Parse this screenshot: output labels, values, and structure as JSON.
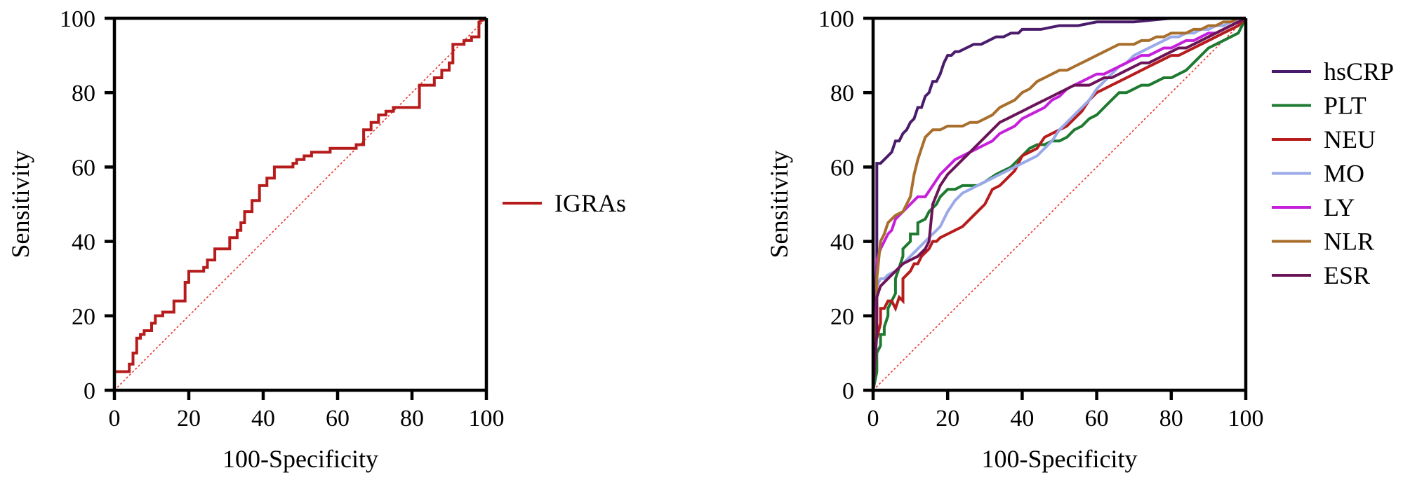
{
  "chart_data": [
    {
      "type": "line",
      "title": "",
      "xlabel": "100-Specificity",
      "ylabel": "Sensitivity",
      "xlim": [
        0,
        100
      ],
      "ylim": [
        0,
        100
      ],
      "xticks": [
        "0",
        "20",
        "40",
        "60",
        "80",
        "100"
      ],
      "yticks": [
        "0",
        "20",
        "40",
        "60",
        "80",
        "100"
      ],
      "grid": false,
      "legend_position": "right",
      "reference_line": {
        "x": [
          0,
          100
        ],
        "y": [
          0,
          100
        ],
        "color": "#e8352b",
        "style": "dotted"
      },
      "series": [
        {
          "name": "IGRAs",
          "color": "#b71c1c",
          "x": [
            0,
            0,
            4,
            4,
            5,
            5,
            6,
            6,
            7,
            7,
            8,
            8,
            10,
            10,
            11,
            11,
            13,
            13,
            16,
            16,
            19,
            19,
            20,
            20,
            22,
            22,
            24,
            24,
            25,
            25,
            27,
            27,
            28,
            28,
            31,
            31,
            33,
            33,
            34,
            34,
            35,
            35,
            37,
            37,
            39,
            39,
            41,
            41,
            43,
            43,
            47,
            47,
            48,
            48,
            49,
            49,
            51,
            51,
            53,
            53,
            55,
            55,
            58,
            58,
            62,
            62,
            65,
            65,
            67,
            67,
            69,
            69,
            71,
            71,
            73,
            73,
            75,
            75,
            78,
            78,
            82,
            82,
            84,
            84,
            86,
            86,
            88,
            88,
            90,
            90,
            91,
            91,
            94,
            94,
            96,
            96,
            98,
            98,
            100
          ],
          "y": [
            0,
            5,
            5,
            7,
            7,
            10,
            10,
            14,
            14,
            15,
            15,
            16,
            16,
            18,
            18,
            20,
            20,
            21,
            21,
            24,
            24,
            29,
            29,
            32,
            32,
            32,
            32,
            33,
            33,
            35,
            35,
            38,
            38,
            38,
            38,
            41,
            41,
            43,
            43,
            45,
            45,
            48,
            48,
            51,
            51,
            55,
            55,
            57,
            57,
            60,
            60,
            60,
            60,
            61,
            61,
            62,
            62,
            63,
            63,
            64,
            64,
            64,
            64,
            65,
            65,
            65,
            65,
            66,
            66,
            70,
            70,
            72,
            72,
            74,
            74,
            75,
            75,
            76,
            76,
            76,
            76,
            82,
            82,
            82,
            82,
            84,
            84,
            86,
            86,
            88,
            88,
            93,
            93,
            94,
            94,
            95,
            95,
            99,
            100
          ]
        }
      ]
    },
    {
      "type": "line",
      "title": "",
      "xlabel": "100-Specificity",
      "ylabel": "Sensitivity",
      "xlim": [
        0,
        100
      ],
      "ylim": [
        0,
        100
      ],
      "xticks": [
        "0",
        "20",
        "40",
        "60",
        "80",
        "100"
      ],
      "yticks": [
        "0",
        "20",
        "40",
        "60",
        "80",
        "100"
      ],
      "grid": false,
      "legend_position": "right",
      "reference_line": {
        "x": [
          0,
          100
        ],
        "y": [
          0,
          100
        ],
        "color": "#e8352b",
        "style": "dotted"
      },
      "series": [
        {
          "name": "hsCRP",
          "color": "#4a1b6b",
          "x": [
            0,
            1,
            1,
            2,
            3,
            4,
            5,
            6,
            7,
            8,
            9,
            10,
            11,
            12,
            13,
            14,
            15,
            16,
            17,
            18,
            19,
            20,
            21,
            22,
            23,
            25,
            27,
            29,
            31,
            33,
            35,
            37,
            39,
            40,
            42,
            45,
            50,
            55,
            60,
            70,
            80,
            90,
            100
          ],
          "y": [
            0,
            35,
            61,
            61,
            62,
            63,
            64,
            67,
            67,
            69,
            70,
            72,
            73,
            76,
            76,
            79,
            80,
            83,
            83,
            85,
            88,
            90,
            90,
            91,
            91,
            92,
            93,
            93,
            94,
            95,
            95,
            96,
            96,
            97,
            97,
            97,
            98,
            98,
            99,
            99,
            100,
            100,
            100
          ]
        },
        {
          "name": "PLT",
          "color": "#1e7a30",
          "x": [
            0,
            1,
            1,
            2,
            2,
            3,
            3,
            4,
            4,
            6,
            6,
            8,
            8,
            10,
            10,
            12,
            12,
            14,
            15,
            17,
            18,
            20,
            22,
            24,
            26,
            28,
            30,
            33,
            35,
            37,
            39,
            40,
            42,
            44,
            46,
            48,
            50,
            52,
            54,
            56,
            58,
            60,
            62,
            64,
            66,
            68,
            70,
            72,
            74,
            76,
            78,
            80,
            82,
            84,
            86,
            88,
            90,
            92,
            94,
            96,
            98,
            100
          ],
          "y": [
            0,
            5,
            10,
            12,
            15,
            15,
            17,
            20,
            22,
            26,
            30,
            36,
            38,
            40,
            42,
            42,
            45,
            46,
            48,
            50,
            52,
            54,
            54,
            55,
            55,
            55,
            56,
            58,
            59,
            60,
            62,
            63,
            65,
            66,
            66,
            67,
            67,
            68,
            70,
            71,
            73,
            74,
            76,
            78,
            80,
            80,
            81,
            82,
            82,
            83,
            84,
            84,
            85,
            86,
            88,
            90,
            92,
            93,
            94,
            95,
            96,
            100
          ]
        },
        {
          "name": "NEU",
          "color": "#b71c1c",
          "x": [
            0,
            1,
            1,
            2,
            2,
            3,
            4,
            5,
            6,
            7,
            8,
            8,
            10,
            11,
            12,
            13,
            15,
            16,
            17,
            18,
            20,
            22,
            24,
            26,
            28,
            30,
            32,
            34,
            36,
            38,
            40,
            42,
            44,
            46,
            48,
            50,
            52,
            54,
            56,
            58,
            60,
            62,
            64,
            66,
            68,
            70,
            72,
            74,
            76,
            78,
            80,
            82,
            84,
            86,
            88,
            90,
            92,
            94,
            96,
            98,
            100
          ],
          "y": [
            0,
            18,
            14,
            18,
            22,
            22,
            24,
            24,
            22,
            25,
            24,
            30,
            32,
            34,
            34,
            36,
            38,
            40,
            40,
            41,
            42,
            43,
            44,
            46,
            48,
            50,
            54,
            55,
            57,
            59,
            63,
            64,
            65,
            68,
            69,
            70,
            71,
            73,
            75,
            78,
            80,
            81,
            82,
            83,
            84,
            85,
            86,
            87,
            88,
            89,
            90,
            90,
            91,
            92,
            93,
            94,
            95,
            96,
            97,
            98,
            100
          ]
        },
        {
          "name": "MO",
          "color": "#9aa9e8",
          "x": [
            0,
            1,
            1,
            2,
            3,
            4,
            6,
            8,
            10,
            12,
            14,
            16,
            18,
            20,
            22,
            24,
            26,
            28,
            30,
            32,
            34,
            36,
            38,
            40,
            42,
            44,
            46,
            48,
            50,
            52,
            54,
            56,
            58,
            60,
            62,
            64,
            66,
            68,
            70,
            72,
            74,
            76,
            78,
            80,
            82,
            84,
            86,
            88,
            90,
            92,
            94,
            96,
            98,
            100
          ],
          "y": [
            0,
            20,
            28,
            30,
            30,
            31,
            32,
            34,
            36,
            38,
            40,
            42,
            44,
            48,
            51,
            53,
            54,
            55,
            56,
            57,
            58,
            59,
            60,
            61,
            62,
            63,
            65,
            67,
            70,
            72,
            74,
            76,
            78,
            81,
            83,
            85,
            87,
            88,
            90,
            91,
            92,
            93,
            94,
            95,
            95,
            96,
            96,
            97,
            97,
            98,
            98,
            99,
            99,
            100
          ]
        },
        {
          "name": "LY",
          "color": "#c61fdc",
          "x": [
            0,
            1,
            1,
            2,
            3,
            4,
            5,
            6,
            8,
            10,
            12,
            14,
            16,
            18,
            20,
            22,
            24,
            26,
            28,
            30,
            32,
            34,
            36,
            38,
            40,
            42,
            44,
            46,
            48,
            50,
            52,
            54,
            56,
            58,
            60,
            62,
            64,
            66,
            68,
            70,
            72,
            74,
            76,
            78,
            80,
            82,
            84,
            86,
            88,
            90,
            92,
            94,
            96,
            98,
            100
          ],
          "y": [
            0,
            26,
            35,
            38,
            40,
            42,
            43,
            46,
            48,
            50,
            52,
            52,
            55,
            58,
            60,
            62,
            63,
            64,
            65,
            66,
            67,
            69,
            70,
            71,
            73,
            74,
            75,
            76,
            78,
            79,
            81,
            82,
            83,
            84,
            85,
            85,
            86,
            87,
            88,
            89,
            90,
            90,
            91,
            92,
            92,
            93,
            94,
            94,
            95,
            96,
            96,
            97,
            98,
            99,
            100
          ]
        },
        {
          "name": "NLR",
          "color": "#a86e2c",
          "x": [
            0,
            1,
            1,
            2,
            3,
            4,
            5,
            6,
            8,
            9,
            10,
            11,
            12,
            13,
            14,
            15,
            16,
            18,
            20,
            22,
            24,
            26,
            28,
            30,
            32,
            34,
            36,
            38,
            40,
            42,
            44,
            46,
            48,
            50,
            52,
            54,
            56,
            58,
            60,
            62,
            64,
            66,
            68,
            70,
            72,
            74,
            76,
            78,
            80,
            82,
            84,
            86,
            88,
            90,
            92,
            94,
            96,
            98,
            100
          ],
          "y": [
            0,
            22,
            30,
            40,
            42,
            45,
            46,
            47,
            48,
            50,
            52,
            58,
            62,
            65,
            68,
            69,
            70,
            70,
            71,
            71,
            71,
            72,
            72,
            73,
            74,
            76,
            77,
            78,
            80,
            81,
            83,
            84,
            85,
            86,
            86,
            87,
            88,
            89,
            90,
            91,
            92,
            93,
            93,
            93,
            94,
            94,
            95,
            95,
            96,
            96,
            96,
            97,
            97,
            98,
            98,
            99,
            99,
            100,
            100
          ]
        },
        {
          "name": "ESR",
          "color": "#6b1558",
          "x": [
            0,
            1,
            1,
            2,
            4,
            6,
            8,
            10,
            12,
            14,
            15,
            16,
            18,
            20,
            22,
            24,
            26,
            28,
            30,
            32,
            34,
            36,
            38,
            40,
            42,
            44,
            46,
            48,
            50,
            52,
            54,
            56,
            58,
            60,
            62,
            64,
            66,
            68,
            70,
            72,
            74,
            76,
            78,
            80,
            82,
            84,
            86,
            88,
            90,
            92,
            94,
            96,
            98,
            100
          ],
          "y": [
            0,
            15,
            25,
            28,
            30,
            32,
            34,
            35,
            36,
            38,
            40,
            50,
            55,
            58,
            60,
            62,
            64,
            66,
            68,
            70,
            72,
            73,
            74,
            75,
            76,
            77,
            78,
            79,
            80,
            81,
            82,
            82,
            82,
            83,
            84,
            84,
            85,
            86,
            87,
            88,
            88,
            89,
            90,
            91,
            92,
            92,
            93,
            94,
            95,
            96,
            97,
            98,
            99,
            100
          ]
        }
      ]
    }
  ]
}
